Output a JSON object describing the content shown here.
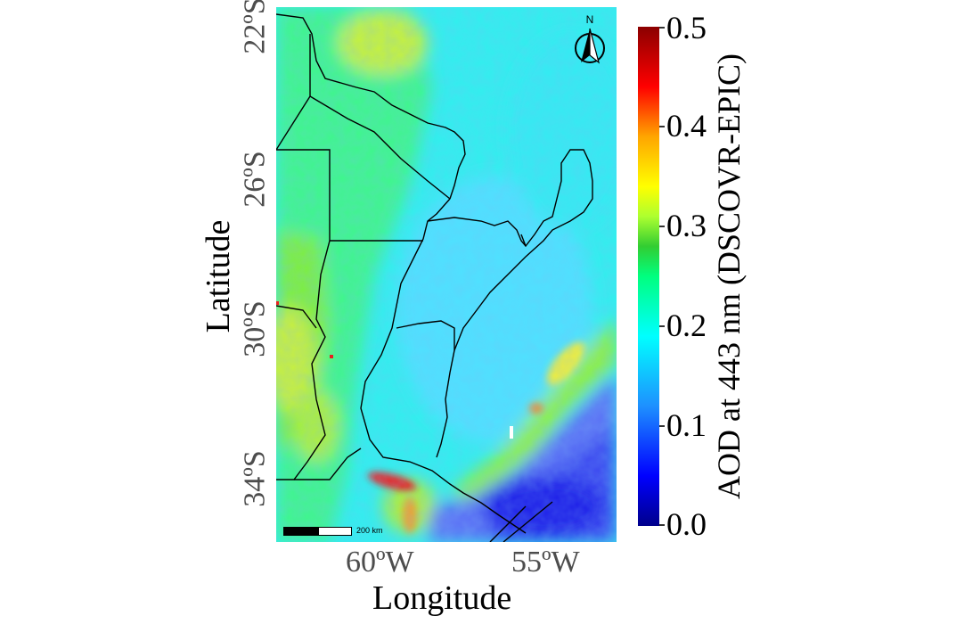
{
  "map": {
    "x_axis_title": "Longitude",
    "y_axis_title": "Latitude",
    "x_ticks": [
      "60ºW",
      "55ºW"
    ],
    "y_ticks": [
      "22ºS",
      "26ºS",
      "30ºS",
      "34ºS"
    ],
    "scale_bar_label": "200 km",
    "north_label": "N",
    "colormap": [
      "#00008b",
      "#0000ff",
      "#1e90ff",
      "#00ffff",
      "#00ff7f",
      "#32cd32",
      "#adff2f",
      "#ffff00",
      "#ffa500",
      "#ff0000",
      "#8b0000"
    ]
  },
  "colorbar": {
    "title": "AOD at 443 nm (DSCOVR-EPIC)",
    "ticks": [
      "0.0",
      "0.1",
      "0.2",
      "0.3",
      "0.4",
      "0.5"
    ],
    "range": [
      0.0,
      0.5
    ]
  }
}
